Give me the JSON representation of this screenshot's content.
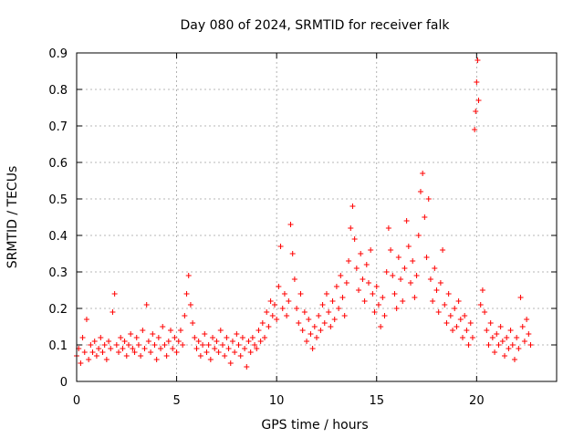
{
  "chart_data": {
    "type": "scatter",
    "title": "Day 080 of 2024, SRMTID for receiver falk",
    "xlabel": "GPS time / hours",
    "ylabel": "SRMTID / TECUs",
    "xlim": [
      0,
      24
    ],
    "ylim": [
      0,
      0.9
    ],
    "grid": true,
    "marker": "+",
    "marker_color": "#ff0000",
    "x_ticks": [
      {
        "value": 0,
        "label": "0"
      },
      {
        "value": 5,
        "label": "5"
      },
      {
        "value": 10,
        "label": "10"
      },
      {
        "value": 15,
        "label": "15"
      },
      {
        "value": 20,
        "label": "20"
      }
    ],
    "y_ticks": [
      {
        "value": 0,
        "label": "0"
      },
      {
        "value": 0.1,
        "label": "0.1"
      },
      {
        "value": 0.2,
        "label": "0.2"
      },
      {
        "value": 0.3,
        "label": "0.3"
      },
      {
        "value": 0.4,
        "label": "0.4"
      },
      {
        "value": 0.5,
        "label": "0.5"
      },
      {
        "value": 0.6,
        "label": "0.6"
      },
      {
        "value": 0.7,
        "label": "0.7"
      },
      {
        "value": 0.8,
        "label": "0.8"
      },
      {
        "value": 0.9,
        "label": "0.9"
      }
    ],
    "series": [
      {
        "name": "SRMTID",
        "points": [
          [
            0.0,
            0.07
          ],
          [
            0.1,
            0.09
          ],
          [
            0.2,
            0.05
          ],
          [
            0.3,
            0.12
          ],
          [
            0.4,
            0.08
          ],
          [
            0.5,
            0.17
          ],
          [
            0.6,
            0.06
          ],
          [
            0.7,
            0.1
          ],
          [
            0.8,
            0.08
          ],
          [
            0.9,
            0.11
          ],
          [
            1.0,
            0.07
          ],
          [
            1.1,
            0.09
          ],
          [
            1.2,
            0.12
          ],
          [
            1.3,
            0.08
          ],
          [
            1.4,
            0.1
          ],
          [
            1.5,
            0.06
          ],
          [
            1.6,
            0.11
          ],
          [
            1.7,
            0.09
          ],
          [
            1.8,
            0.19
          ],
          [
            1.9,
            0.24
          ],
          [
            2.0,
            0.1
          ],
          [
            2.1,
            0.08
          ],
          [
            2.2,
            0.12
          ],
          [
            2.3,
            0.09
          ],
          [
            2.4,
            0.11
          ],
          [
            2.5,
            0.07
          ],
          [
            2.6,
            0.1
          ],
          [
            2.7,
            0.13
          ],
          [
            2.8,
            0.09
          ],
          [
            2.9,
            0.08
          ],
          [
            3.0,
            0.12
          ],
          [
            3.1,
            0.1
          ],
          [
            3.2,
            0.07
          ],
          [
            3.3,
            0.14
          ],
          [
            3.4,
            0.09
          ],
          [
            3.5,
            0.21
          ],
          [
            3.6,
            0.11
          ],
          [
            3.7,
            0.08
          ],
          [
            3.8,
            0.13
          ],
          [
            3.9,
            0.1
          ],
          [
            4.0,
            0.06
          ],
          [
            4.1,
            0.12
          ],
          [
            4.2,
            0.09
          ],
          [
            4.3,
            0.15
          ],
          [
            4.4,
            0.1
          ],
          [
            4.5,
            0.07
          ],
          [
            4.6,
            0.11
          ],
          [
            4.7,
            0.14
          ],
          [
            4.8,
            0.09
          ],
          [
            4.9,
            0.12
          ],
          [
            5.0,
            0.08
          ],
          [
            5.1,
            0.11
          ],
          [
            5.2,
            0.14
          ],
          [
            5.3,
            0.1
          ],
          [
            5.4,
            0.18
          ],
          [
            5.5,
            0.24
          ],
          [
            5.6,
            0.29
          ],
          [
            5.7,
            0.21
          ],
          [
            5.8,
            0.16
          ],
          [
            5.9,
            0.12
          ],
          [
            6.0,
            0.09
          ],
          [
            6.1,
            0.11
          ],
          [
            6.2,
            0.07
          ],
          [
            6.3,
            0.1
          ],
          [
            6.4,
            0.13
          ],
          [
            6.5,
            0.08
          ],
          [
            6.6,
            0.1
          ],
          [
            6.7,
            0.06
          ],
          [
            6.8,
            0.12
          ],
          [
            6.9,
            0.09
          ],
          [
            7.0,
            0.11
          ],
          [
            7.1,
            0.08
          ],
          [
            7.2,
            0.14
          ],
          [
            7.3,
            0.1
          ],
          [
            7.4,
            0.07
          ],
          [
            7.5,
            0.12
          ],
          [
            7.6,
            0.09
          ],
          [
            7.7,
            0.05
          ],
          [
            7.8,
            0.11
          ],
          [
            7.9,
            0.08
          ],
          [
            8.0,
            0.13
          ],
          [
            8.1,
            0.1
          ],
          [
            8.2,
            0.07
          ],
          [
            8.3,
            0.12
          ],
          [
            8.4,
            0.09
          ],
          [
            8.5,
            0.04
          ],
          [
            8.6,
            0.11
          ],
          [
            8.7,
            0.08
          ],
          [
            8.8,
            0.12
          ],
          [
            8.9,
            0.1
          ],
          [
            9.0,
            0.09
          ],
          [
            9.1,
            0.14
          ],
          [
            9.2,
            0.11
          ],
          [
            9.3,
            0.16
          ],
          [
            9.4,
            0.12
          ],
          [
            9.5,
            0.19
          ],
          [
            9.6,
            0.15
          ],
          [
            9.7,
            0.22
          ],
          [
            9.8,
            0.18
          ],
          [
            9.9,
            0.21
          ],
          [
            10.0,
            0.17
          ],
          [
            10.1,
            0.26
          ],
          [
            10.2,
            0.37
          ],
          [
            10.3,
            0.2
          ],
          [
            10.4,
            0.24
          ],
          [
            10.5,
            0.18
          ],
          [
            10.6,
            0.22
          ],
          [
            10.7,
            0.43
          ],
          [
            10.8,
            0.35
          ],
          [
            10.9,
            0.28
          ],
          [
            11.0,
            0.2
          ],
          [
            11.1,
            0.16
          ],
          [
            11.2,
            0.24
          ],
          [
            11.3,
            0.14
          ],
          [
            11.4,
            0.19
          ],
          [
            11.5,
            0.11
          ],
          [
            11.6,
            0.17
          ],
          [
            11.7,
            0.13
          ],
          [
            11.8,
            0.09
          ],
          [
            11.9,
            0.15
          ],
          [
            12.0,
            0.12
          ],
          [
            12.1,
            0.18
          ],
          [
            12.2,
            0.14
          ],
          [
            12.3,
            0.21
          ],
          [
            12.4,
            0.16
          ],
          [
            12.5,
            0.24
          ],
          [
            12.6,
            0.19
          ],
          [
            12.7,
            0.15
          ],
          [
            12.8,
            0.22
          ],
          [
            12.9,
            0.17
          ],
          [
            13.0,
            0.26
          ],
          [
            13.1,
            0.2
          ],
          [
            13.2,
            0.29
          ],
          [
            13.3,
            0.23
          ],
          [
            13.4,
            0.18
          ],
          [
            13.5,
            0.27
          ],
          [
            13.6,
            0.33
          ],
          [
            13.7,
            0.42
          ],
          [
            13.8,
            0.48
          ],
          [
            13.9,
            0.39
          ],
          [
            14.0,
            0.31
          ],
          [
            14.1,
            0.25
          ],
          [
            14.2,
            0.35
          ],
          [
            14.3,
            0.28
          ],
          [
            14.4,
            0.22
          ],
          [
            14.5,
            0.32
          ],
          [
            14.6,
            0.27
          ],
          [
            14.7,
            0.36
          ],
          [
            14.8,
            0.24
          ],
          [
            14.9,
            0.19
          ],
          [
            15.0,
            0.26
          ],
          [
            15.1,
            0.21
          ],
          [
            15.2,
            0.15
          ],
          [
            15.3,
            0.23
          ],
          [
            15.4,
            0.18
          ],
          [
            15.5,
            0.3
          ],
          [
            15.6,
            0.42
          ],
          [
            15.7,
            0.36
          ],
          [
            15.8,
            0.29
          ],
          [
            15.9,
            0.24
          ],
          [
            16.0,
            0.2
          ],
          [
            16.1,
            0.34
          ],
          [
            16.2,
            0.28
          ],
          [
            16.3,
            0.22
          ],
          [
            16.4,
            0.31
          ],
          [
            16.5,
            0.44
          ],
          [
            16.6,
            0.37
          ],
          [
            16.7,
            0.27
          ],
          [
            16.8,
            0.33
          ],
          [
            16.9,
            0.23
          ],
          [
            17.0,
            0.29
          ],
          [
            17.1,
            0.4
          ],
          [
            17.2,
            0.52
          ],
          [
            17.3,
            0.57
          ],
          [
            17.4,
            0.45
          ],
          [
            17.5,
            0.34
          ],
          [
            17.6,
            0.5
          ],
          [
            17.7,
            0.28
          ],
          [
            17.8,
            0.22
          ],
          [
            17.9,
            0.31
          ],
          [
            18.0,
            0.25
          ],
          [
            18.1,
            0.19
          ],
          [
            18.2,
            0.27
          ],
          [
            18.3,
            0.36
          ],
          [
            18.4,
            0.21
          ],
          [
            18.5,
            0.16
          ],
          [
            18.6,
            0.24
          ],
          [
            18.7,
            0.18
          ],
          [
            18.8,
            0.14
          ],
          [
            18.9,
            0.2
          ],
          [
            19.0,
            0.15
          ],
          [
            19.1,
            0.22
          ],
          [
            19.2,
            0.17
          ],
          [
            19.3,
            0.12
          ],
          [
            19.4,
            0.18
          ],
          [
            19.5,
            0.14
          ],
          [
            19.6,
            0.1
          ],
          [
            19.7,
            0.16
          ],
          [
            19.8,
            0.12
          ],
          [
            19.9,
            0.69
          ],
          [
            19.95,
            0.74
          ],
          [
            20.0,
            0.82
          ],
          [
            20.05,
            0.88
          ],
          [
            20.1,
            0.77
          ],
          [
            20.2,
            0.21
          ],
          [
            20.3,
            0.25
          ],
          [
            20.4,
            0.19
          ],
          [
            20.5,
            0.14
          ],
          [
            20.6,
            0.1
          ],
          [
            20.7,
            0.16
          ],
          [
            20.8,
            0.12
          ],
          [
            20.9,
            0.08
          ],
          [
            21.0,
            0.13
          ],
          [
            21.1,
            0.1
          ],
          [
            21.2,
            0.15
          ],
          [
            21.3,
            0.11
          ],
          [
            21.4,
            0.07
          ],
          [
            21.5,
            0.12
          ],
          [
            21.6,
            0.09
          ],
          [
            21.7,
            0.14
          ],
          [
            21.8,
            0.1
          ],
          [
            21.9,
            0.06
          ],
          [
            22.0,
            0.12
          ],
          [
            22.1,
            0.09
          ],
          [
            22.2,
            0.23
          ],
          [
            22.3,
            0.15
          ],
          [
            22.4,
            0.11
          ],
          [
            22.5,
            0.17
          ],
          [
            22.6,
            0.13
          ],
          [
            22.7,
            0.1
          ]
        ]
      }
    ]
  }
}
